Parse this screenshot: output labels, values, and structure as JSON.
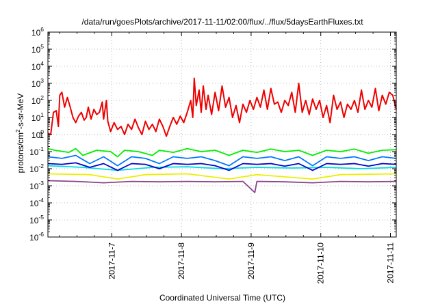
{
  "chart_data": {
    "type": "line",
    "title": "/data/run/goesPlots/archive/2017-11-11/02:00/flux/../flux/5daysEarthFluxes.txt",
    "xlabel": "Coordinated Universal Time (UTC)",
    "ylabel": "protons/cm²-s-sr-MeV",
    "y_scale": "log",
    "ylim": [
      "1e-6",
      "1e6"
    ],
    "y_ticks": [
      {
        "base": "10",
        "exp": "-6"
      },
      {
        "base": "10",
        "exp": "-5"
      },
      {
        "base": "10",
        "exp": "-4"
      },
      {
        "base": "10",
        "exp": "-3"
      },
      {
        "base": "10",
        "exp": "-2"
      },
      {
        "base": "10",
        "exp": "-1"
      },
      {
        "base": "10",
        "exp": "0"
      },
      {
        "base": "1",
        "exp": ""
      },
      {
        "base": "10",
        "exp": "1"
      },
      {
        "base": "10",
        "exp": "2"
      },
      {
        "base": "10",
        "exp": "3"
      },
      {
        "base": "10",
        "exp": "4"
      },
      {
        "base": "10",
        "exp": "5"
      },
      {
        "base": "10",
        "exp": "6"
      }
    ],
    "xlim": [
      "2017-11-06T02:00",
      "2017-11-11T02:00"
    ],
    "x_ticks": [
      "2017-11-7",
      "2017-11-8",
      "2017-11-9",
      "2017-11-10",
      "2017-11-11"
    ],
    "grid": true,
    "series": [
      {
        "color": "#ee0000",
        "values": [
          [
            0.0,
            1.2
          ],
          [
            0.04,
            1.0
          ],
          [
            0.08,
            20
          ],
          [
            0.12,
            25
          ],
          [
            0.15,
            3
          ],
          [
            0.17,
            200
          ],
          [
            0.2,
            300
          ],
          [
            0.24,
            40
          ],
          [
            0.28,
            150
          ],
          [
            0.32,
            40
          ],
          [
            0.36,
            10
          ],
          [
            0.4,
            5
          ],
          [
            0.44,
            12
          ],
          [
            0.48,
            20
          ],
          [
            0.52,
            7
          ],
          [
            0.55,
            10
          ],
          [
            0.58,
            40
          ],
          [
            0.62,
            8
          ],
          [
            0.66,
            30
          ],
          [
            0.7,
            15
          ],
          [
            0.74,
            20
          ],
          [
            0.78,
            80
          ],
          [
            0.8,
            8
          ],
          [
            0.84,
            100
          ],
          [
            0.86,
            6
          ],
          [
            0.9,
            1.5
          ],
          [
            0.95,
            5
          ],
          [
            1.0,
            2
          ],
          [
            1.05,
            3
          ],
          [
            1.1,
            1
          ],
          [
            1.15,
            4
          ],
          [
            1.2,
            2
          ],
          [
            1.25,
            8
          ],
          [
            1.3,
            2.5
          ],
          [
            1.35,
            1
          ],
          [
            1.4,
            6
          ],
          [
            1.45,
            2
          ],
          [
            1.5,
            4
          ],
          [
            1.55,
            1.5
          ],
          [
            1.6,
            8
          ],
          [
            1.65,
            3
          ],
          [
            1.7,
            0.8
          ],
          [
            1.75,
            3
          ],
          [
            1.8,
            10
          ],
          [
            1.85,
            4
          ],
          [
            1.9,
            12
          ],
          [
            1.95,
            5
          ],
          [
            2.0,
            20
          ],
          [
            2.05,
            100
          ],
          [
            2.08,
            10
          ],
          [
            2.1,
            2000
          ],
          [
            2.13,
            50
          ],
          [
            2.17,
            400
          ],
          [
            2.2,
            20
          ],
          [
            2.23,
            700
          ],
          [
            2.27,
            30
          ],
          [
            2.3,
            200
          ],
          [
            2.35,
            15
          ],
          [
            2.4,
            300
          ],
          [
            2.45,
            25
          ],
          [
            2.5,
            700
          ],
          [
            2.55,
            40
          ],
          [
            2.6,
            150
          ],
          [
            2.65,
            10
          ],
          [
            2.7,
            50
          ],
          [
            2.75,
            5
          ],
          [
            2.8,
            60
          ],
          [
            2.85,
            20
          ],
          [
            2.9,
            100
          ],
          [
            2.95,
            30
          ],
          [
            3.0,
            150
          ],
          [
            3.05,
            40
          ],
          [
            3.1,
            400
          ],
          [
            3.15,
            30
          ],
          [
            3.2,
            500
          ],
          [
            3.25,
            60
          ],
          [
            3.3,
            80
          ],
          [
            3.35,
            20
          ],
          [
            3.4,
            100
          ],
          [
            3.45,
            50
          ],
          [
            3.5,
            300
          ],
          [
            3.55,
            20
          ],
          [
            3.6,
            1000
          ],
          [
            3.65,
            20
          ],
          [
            3.7,
            100
          ],
          [
            3.75,
            15
          ],
          [
            3.8,
            120
          ],
          [
            3.85,
            30
          ],
          [
            3.9,
            100
          ],
          [
            3.95,
            10
          ],
          [
            4.0,
            50
          ],
          [
            4.05,
            5
          ],
          [
            4.1,
            200
          ],
          [
            4.15,
            30
          ],
          [
            4.2,
            80
          ],
          [
            4.25,
            10
          ],
          [
            4.3,
            60
          ],
          [
            4.35,
            30
          ],
          [
            4.4,
            100
          ],
          [
            4.45,
            20
          ],
          [
            4.5,
            400
          ],
          [
            4.55,
            30
          ],
          [
            4.6,
            100
          ],
          [
            4.65,
            40
          ],
          [
            4.7,
            500
          ],
          [
            4.75,
            25
          ],
          [
            4.8,
            200
          ],
          [
            4.85,
            60
          ],
          [
            4.9,
            300
          ],
          [
            4.95,
            200
          ],
          [
            5.0,
            30
          ]
        ]
      },
      {
        "color": "#00ee00",
        "values": [
          [
            0,
            0.15
          ],
          [
            0.1,
            0.12
          ],
          [
            0.3,
            0.09
          ],
          [
            0.4,
            0.15
          ],
          [
            0.5,
            0.06
          ],
          [
            0.7,
            0.12
          ],
          [
            0.9,
            0.1
          ],
          [
            1.0,
            0.05
          ],
          [
            1.1,
            0.12
          ],
          [
            1.3,
            0.1
          ],
          [
            1.5,
            0.06
          ],
          [
            1.6,
            0.12
          ],
          [
            1.8,
            0.09
          ],
          [
            2.0,
            0.15
          ],
          [
            2.2,
            0.1
          ],
          [
            2.4,
            0.12
          ],
          [
            2.6,
            0.06
          ],
          [
            2.8,
            0.12
          ],
          [
            3.0,
            0.09
          ],
          [
            3.2,
            0.14
          ],
          [
            3.4,
            0.1
          ],
          [
            3.6,
            0.12
          ],
          [
            3.8,
            0.06
          ],
          [
            4.0,
            0.12
          ],
          [
            4.2,
            0.1
          ],
          [
            4.4,
            0.14
          ],
          [
            4.6,
            0.08
          ],
          [
            4.8,
            0.12
          ],
          [
            5.0,
            0.13
          ]
        ]
      },
      {
        "color": "#0077ff",
        "values": [
          [
            0,
            0.05
          ],
          [
            0.2,
            0.04
          ],
          [
            0.4,
            0.06
          ],
          [
            0.6,
            0.02
          ],
          [
            0.8,
            0.05
          ],
          [
            1.0,
            0.015
          ],
          [
            1.2,
            0.05
          ],
          [
            1.4,
            0.04
          ],
          [
            1.6,
            0.02
          ],
          [
            1.8,
            0.05
          ],
          [
            2.0,
            0.04
          ],
          [
            2.2,
            0.05
          ],
          [
            2.4,
            0.03
          ],
          [
            2.6,
            0.015
          ],
          [
            2.8,
            0.05
          ],
          [
            3.0,
            0.04
          ],
          [
            3.2,
            0.05
          ],
          [
            3.4,
            0.03
          ],
          [
            3.6,
            0.05
          ],
          [
            3.8,
            0.015
          ],
          [
            4.0,
            0.05
          ],
          [
            4.2,
            0.04
          ],
          [
            4.4,
            0.05
          ],
          [
            4.6,
            0.03
          ],
          [
            4.8,
            0.05
          ],
          [
            5.0,
            0.04
          ]
        ]
      },
      {
        "color": "#00dddd",
        "values": [
          [
            0,
            0.015
          ],
          [
            0.5,
            0.012
          ],
          [
            1.0,
            0.008
          ],
          [
            1.5,
            0.012
          ],
          [
            2.0,
            0.013
          ],
          [
            2.5,
            0.01
          ],
          [
            3.0,
            0.012
          ],
          [
            3.5,
            0.011
          ],
          [
            4.0,
            0.012
          ],
          [
            4.5,
            0.01
          ],
          [
            5.0,
            0.012
          ]
        ]
      },
      {
        "color": "#0000cc",
        "values": [
          [
            0,
            0.02
          ],
          [
            0.2,
            0.018
          ],
          [
            0.4,
            0.022
          ],
          [
            0.6,
            0.012
          ],
          [
            0.8,
            0.02
          ],
          [
            1.0,
            0.008
          ],
          [
            1.2,
            0.02
          ],
          [
            1.4,
            0.018
          ],
          [
            1.6,
            0.01
          ],
          [
            1.8,
            0.02
          ],
          [
            2.0,
            0.018
          ],
          [
            2.2,
            0.02
          ],
          [
            2.4,
            0.015
          ],
          [
            2.6,
            0.008
          ],
          [
            2.8,
            0.02
          ],
          [
            3.0,
            0.018
          ],
          [
            3.2,
            0.02
          ],
          [
            3.4,
            0.014
          ],
          [
            3.6,
            0.02
          ],
          [
            3.8,
            0.008
          ],
          [
            4.0,
            0.02
          ],
          [
            4.2,
            0.018
          ],
          [
            4.4,
            0.02
          ],
          [
            4.6,
            0.014
          ],
          [
            4.8,
            0.02
          ],
          [
            5.0,
            0.018
          ]
        ]
      },
      {
        "color": "#eeee00",
        "values": [
          [
            0,
            0.005
          ],
          [
            0.6,
            0.0045
          ],
          [
            1.0,
            0.0025
          ],
          [
            1.4,
            0.0045
          ],
          [
            2.0,
            0.005
          ],
          [
            2.6,
            0.0025
          ],
          [
            3.0,
            0.0045
          ],
          [
            3.8,
            0.0025
          ],
          [
            4.2,
            0.0045
          ],
          [
            5.0,
            0.005
          ]
        ]
      },
      {
        "color": "#884488",
        "values": [
          [
            0,
            0.002
          ],
          [
            0.4,
            0.0018
          ],
          [
            0.8,
            0.0015
          ],
          [
            1.2,
            0.0018
          ],
          [
            1.6,
            0.0017
          ],
          [
            2.0,
            0.0018
          ],
          [
            2.4,
            0.0017
          ],
          [
            2.8,
            0.0018
          ],
          [
            2.97,
            0.0004
          ],
          [
            3.0,
            0.0018
          ],
          [
            3.4,
            0.0017
          ],
          [
            3.8,
            0.0015
          ],
          [
            4.2,
            0.0018
          ],
          [
            4.6,
            0.0017
          ],
          [
            5.0,
            0.0018
          ]
        ]
      }
    ]
  }
}
